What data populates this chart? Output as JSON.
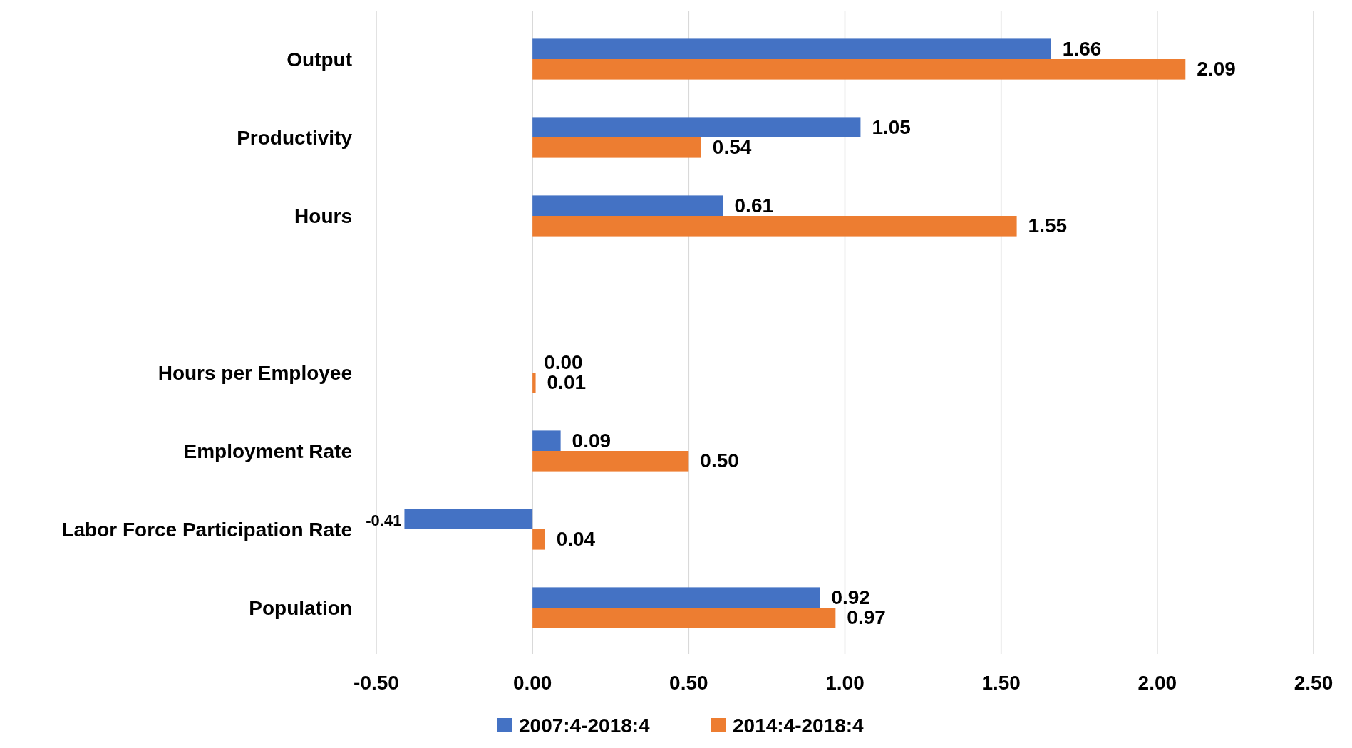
{
  "chart_data": {
    "type": "bar",
    "orientation": "horizontal",
    "categories": [
      "Output",
      "Productivity",
      "Hours",
      null,
      "Hours per Employee",
      "Employment Rate",
      "Labor Force Participation Rate",
      "Population"
    ],
    "series": [
      {
        "name": "2007:4-2018:4",
        "color": "#4472c4",
        "values": [
          1.66,
          1.05,
          0.61,
          null,
          0,
          0.09,
          -0.41,
          0.92
        ],
        "value_labels": [
          "1.66",
          "1.05",
          "0.61",
          null,
          "0.00",
          "0.09",
          "-0.41",
          "0.92"
        ]
      },
      {
        "name": "2014:4-2018:4",
        "color": "#ed7d31",
        "values": [
          2.09,
          0.54,
          1.55,
          null,
          0.01,
          0.5,
          0.04,
          0.97
        ],
        "value_labels": [
          "2.09",
          "0.54",
          "1.55",
          null,
          "0.01",
          "0.50",
          "0.04",
          "0.97"
        ]
      }
    ],
    "xlim": [
      -0.5,
      2.5
    ],
    "xticks": [
      {
        "value": -0.5,
        "label": "-0.50"
      },
      {
        "value": 0,
        "label": "0.00"
      },
      {
        "value": 0.5,
        "label": "0.50"
      },
      {
        "value": 1,
        "label": "1.00"
      },
      {
        "value": 1.5,
        "label": "1.50"
      },
      {
        "value": 2,
        "label": "2.00"
      },
      {
        "value": 2.5,
        "label": "2.50"
      }
    ],
    "grid": "x",
    "legend": "bottom"
  }
}
